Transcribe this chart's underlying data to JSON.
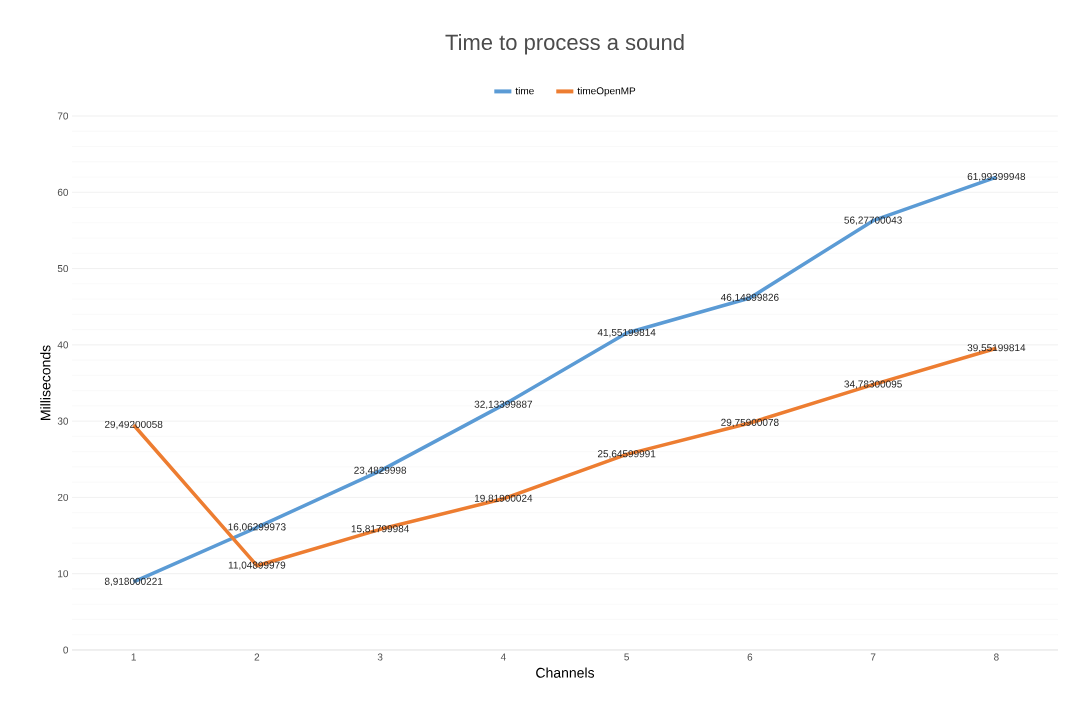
{
  "chart_data": {
    "type": "line",
    "title": "Time to process a sound",
    "xlabel": "Channels",
    "ylabel": "Milliseconds",
    "categories": [
      "1",
      "2",
      "3",
      "4",
      "5",
      "6",
      "7",
      "8"
    ],
    "series": [
      {
        "name": "time",
        "color": "#5b9bd5",
        "values": [
          8.918000221,
          16.06299973,
          23.4829998,
          32.13399887,
          41.55199814,
          46.14899826,
          56.27700043,
          61.99399948
        ],
        "value_labels": [
          "8,918000221",
          "16,06299973",
          "23,4829998",
          "32,13399887",
          "41,55199814",
          "46,14899826",
          "56,27700043",
          "61,99399948"
        ]
      },
      {
        "name": "timeOpenMP",
        "color": "#ed7d31",
        "values": [
          29.49200058,
          11.04899979,
          15.81799984,
          19.81900024,
          25.64599991,
          29.75900078,
          34.78300095,
          39.55199814
        ],
        "value_labels": [
          "29,49200058",
          "11,04899979",
          "15,81799984",
          "19,81900024",
          "25,64599991",
          "29,75900078",
          "34,78300095",
          "39,55199814"
        ]
      }
    ],
    "ylim": [
      0,
      70
    ],
    "yticks": [
      0,
      10,
      20,
      30,
      40,
      50,
      60,
      70
    ],
    "grid": "y",
    "legend": "top",
    "marker": "none",
    "line_style": "solid"
  }
}
